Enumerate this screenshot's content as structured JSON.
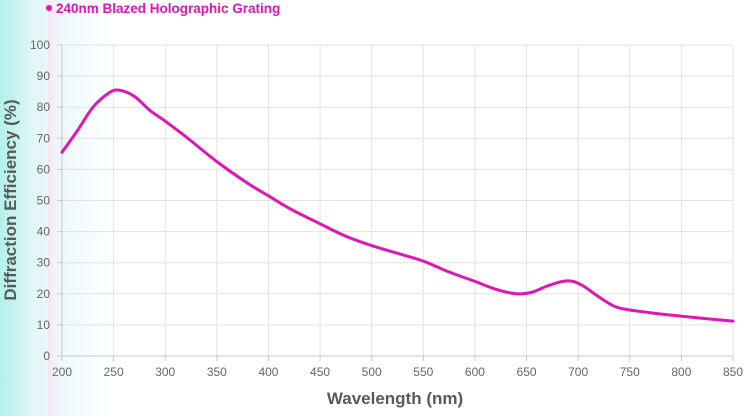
{
  "chart_data": {
    "type": "line",
    "title": "",
    "xlabel": "Wavelength (nm)",
    "ylabel": "Diffraction Efficiency (%)",
    "xlim": [
      200,
      850
    ],
    "ylim": [
      0,
      100
    ],
    "x_ticks": [
      200,
      250,
      300,
      350,
      400,
      450,
      500,
      550,
      600,
      650,
      700,
      750,
      800,
      850
    ],
    "y_ticks": [
      0,
      10,
      20,
      30,
      40,
      50,
      60,
      70,
      80,
      90,
      100
    ],
    "grid": true,
    "legend_position": "top-left",
    "series": [
      {
        "name": "240nm Blazed Holographic Grating",
        "color": "#e016b4",
        "x": [
          200,
          215,
          230,
          245,
          255,
          270,
          285,
          300,
          320,
          350,
          380,
          400,
          420,
          450,
          475,
          500,
          525,
          550,
          575,
          600,
          620,
          640,
          655,
          670,
          685,
          695,
          705,
          720,
          735,
          750,
          780,
          800,
          830,
          850
        ],
        "y": [
          65.5,
          72.5,
          80.0,
          84.5,
          85.5,
          83.5,
          79.0,
          75.5,
          70.5,
          62.5,
          55.5,
          51.5,
          47.5,
          42.5,
          38.5,
          35.5,
          33.0,
          30.5,
          27.0,
          24.0,
          21.5,
          20.0,
          20.5,
          22.5,
          24.0,
          24.0,
          22.5,
          19.0,
          16.0,
          14.8,
          13.5,
          12.8,
          11.8,
          11.2
        ]
      }
    ]
  }
}
